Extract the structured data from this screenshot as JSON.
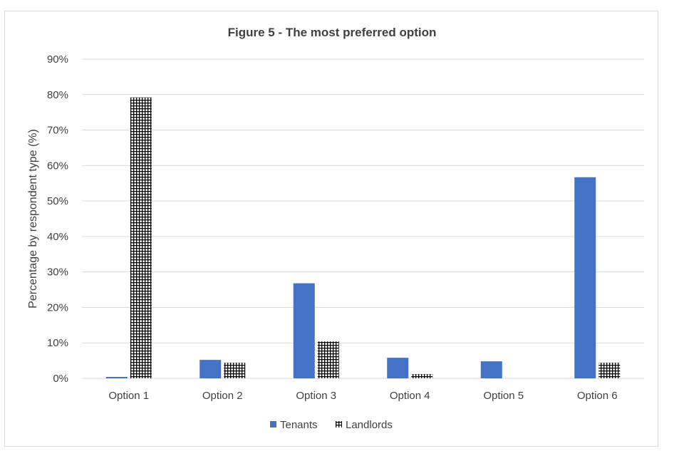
{
  "chart_data": {
    "type": "bar",
    "title": "Figure 5 - The most preferred option",
    "xlabel": "",
    "ylabel": "Percentage by respondent type (%)",
    "ylim": [
      0,
      90
    ],
    "yticks": [
      "0%",
      "10%",
      "20%",
      "30%",
      "40%",
      "50%",
      "60%",
      "70%",
      "80%",
      "90%"
    ],
    "categories": [
      "Option 1",
      "Option 2",
      "Option 3",
      "Option 4",
      "Option 5",
      "Option 6"
    ],
    "series": [
      {
        "name": "Tenants",
        "values": [
          0.4,
          5.2,
          26.8,
          5.8,
          4.8,
          56.7
        ],
        "color": "#4472c4",
        "pattern": "solid"
      },
      {
        "name": "Landlords",
        "values": [
          79.2,
          4.4,
          10.4,
          1.2,
          0,
          4.4
        ],
        "color": "#000000",
        "pattern": "crosshatch"
      }
    ],
    "grid": true,
    "legend": "bottom"
  }
}
